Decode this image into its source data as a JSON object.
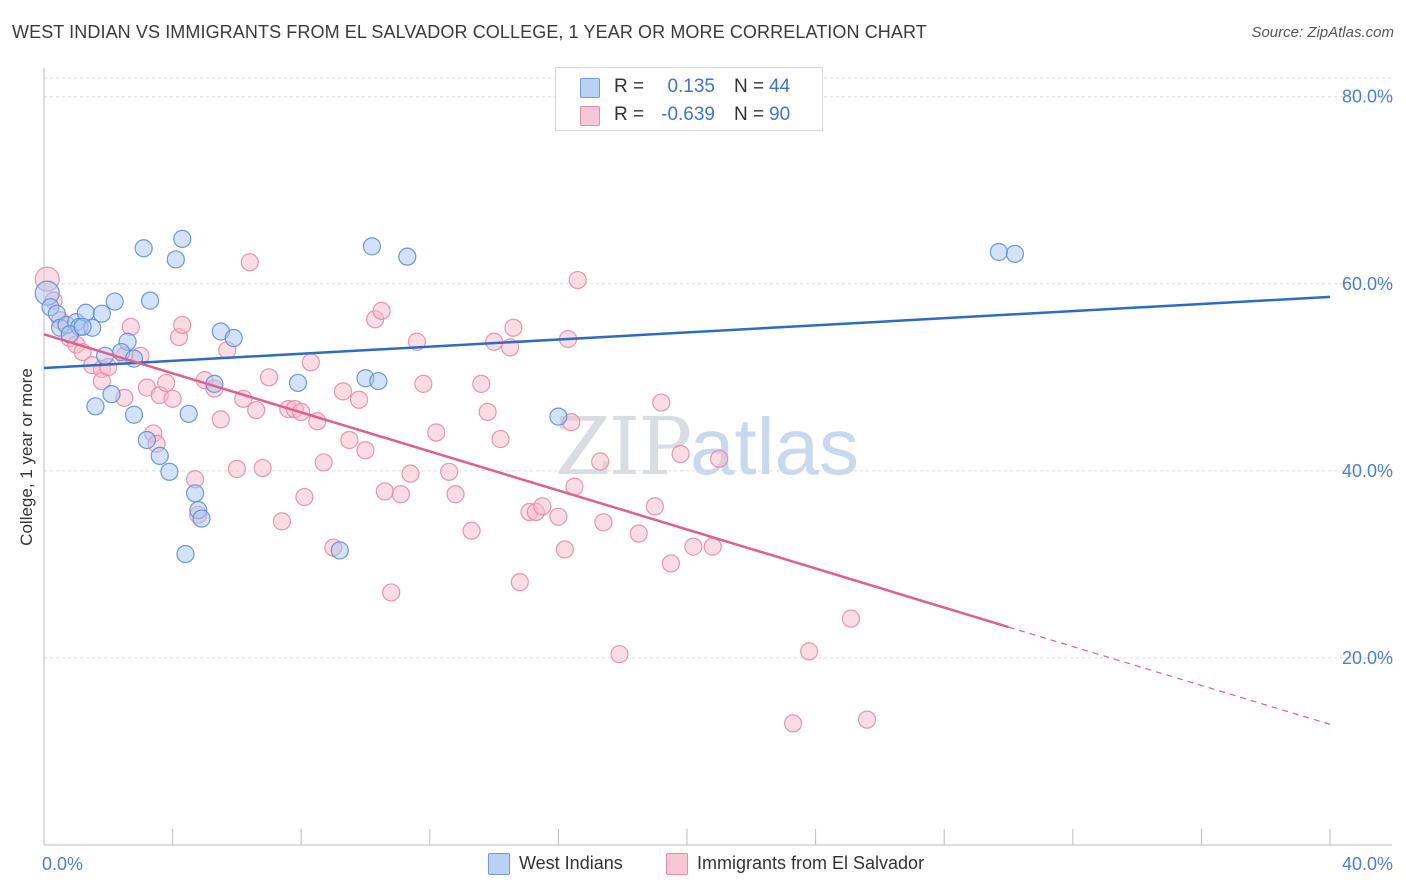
{
  "header": {
    "title": "WEST INDIAN VS IMMIGRANTS FROM EL SALVADOR COLLEGE, 1 YEAR OR MORE CORRELATION CHART",
    "source": "Source: ZipAtlas.com"
  },
  "watermark": {
    "zip": "ZIP",
    "atlas": "atlas"
  },
  "legend_top": {
    "rows": [
      {
        "r_label": "R =",
        "r_value": "0.135",
        "n_label": "N =",
        "n_value": "44"
      },
      {
        "r_label": "R =",
        "r_value": "-0.639",
        "n_label": "N =",
        "n_value": "90"
      }
    ]
  },
  "legend_bottom": {
    "items": [
      {
        "label": "West Indians"
      },
      {
        "label": "Immigrants from El Salvador"
      }
    ]
  },
  "chart_data": {
    "type": "scatter",
    "title": "WEST INDIAN VS IMMIGRANTS FROM EL SALVADOR COLLEGE, 1 YEAR OR MORE CORRELATION CHART",
    "xlabel": "",
    "ylabel": "College, 1 year or more",
    "xlim": [
      0,
      40
    ],
    "ylim": [
      0,
      82
    ],
    "x_ticks": [
      0,
      4,
      8,
      12,
      16,
      20,
      24,
      28,
      32,
      36,
      40
    ],
    "x_tick_labels": [
      {
        "value": 0,
        "label": "0.0%"
      },
      {
        "value": 40,
        "label": "40.0%"
      }
    ],
    "y_ticks": [
      {
        "value": 20,
        "label": "20.0%"
      },
      {
        "value": 40,
        "label": "40.0%"
      },
      {
        "value": 60,
        "label": "60.0%"
      },
      {
        "value": 80,
        "label": "80.0%"
      }
    ],
    "grid": true,
    "legend_position": "bottom",
    "colors": {
      "blue_fill": "#a9c6f0",
      "blue_stroke": "#5d8fd6",
      "blue_line": "#2d6cc4",
      "pink_fill": "#f6b9cb",
      "pink_stroke": "#e88aa5",
      "pink_line": "#e0608a",
      "grid": "#dcdcdc",
      "tick_label": "#4a7fd4"
    },
    "series": [
      {
        "name": "West Indians",
        "r": 0.135,
        "n": 44,
        "color": "blue",
        "trend": {
          "x": [
            0,
            40
          ],
          "y": [
            51.0,
            58.6
          ]
        },
        "points": [
          [
            0.1,
            59.0
          ],
          [
            0.2,
            57.5
          ],
          [
            0.4,
            56.8
          ],
          [
            0.5,
            55.3
          ],
          [
            0.7,
            55.6
          ],
          [
            1.0,
            55.9
          ],
          [
            1.1,
            55.4
          ],
          [
            1.3,
            56.9
          ],
          [
            1.5,
            55.3
          ],
          [
            1.8,
            56.8
          ],
          [
            2.2,
            58.1
          ],
          [
            2.6,
            53.8
          ],
          [
            2.4,
            52.7
          ],
          [
            2.8,
            52.0
          ],
          [
            3.3,
            58.2
          ],
          [
            3.1,
            63.8
          ],
          [
            4.1,
            62.6
          ],
          [
            4.3,
            64.8
          ],
          [
            1.6,
            46.9
          ],
          [
            2.1,
            48.2
          ],
          [
            2.8,
            46.0
          ],
          [
            3.2,
            43.3
          ],
          [
            3.6,
            41.6
          ],
          [
            3.9,
            39.9
          ],
          [
            4.5,
            46.1
          ],
          [
            4.7,
            37.6
          ],
          [
            4.8,
            35.8
          ],
          [
            4.9,
            34.9
          ],
          [
            4.4,
            31.1
          ],
          [
            5.5,
            54.9
          ],
          [
            5.9,
            54.2
          ],
          [
            5.3,
            49.3
          ],
          [
            7.9,
            49.4
          ],
          [
            9.2,
            31.5
          ],
          [
            10.0,
            49.9
          ],
          [
            10.2,
            64.0
          ],
          [
            10.4,
            49.6
          ],
          [
            11.3,
            62.9
          ],
          [
            16.0,
            45.8
          ],
          [
            29.7,
            63.4
          ],
          [
            30.2,
            63.2
          ],
          [
            0.8,
            54.6
          ],
          [
            1.2,
            55.4
          ],
          [
            1.9,
            52.3
          ]
        ]
      },
      {
        "name": "Immigrants from El Salvador",
        "r": -0.639,
        "n": 90,
        "color": "pink",
        "trend": {
          "x": [
            0,
            30
          ],
          "y": [
            54.6,
            23.3
          ]
        },
        "trend_extension": {
          "x": [
            30,
            40
          ],
          "y": [
            23.3,
            12.9
          ]
        },
        "points": [
          [
            0.1,
            60.5
          ],
          [
            0.3,
            58.2
          ],
          [
            0.5,
            56.1
          ],
          [
            0.8,
            54.2
          ],
          [
            1.0,
            53.5
          ],
          [
            1.2,
            52.7
          ],
          [
            1.5,
            51.3
          ],
          [
            1.8,
            50.9
          ],
          [
            1.8,
            49.6
          ],
          [
            2.0,
            51.1
          ],
          [
            2.5,
            52.3
          ],
          [
            2.5,
            47.8
          ],
          [
            2.7,
            55.4
          ],
          [
            3.0,
            52.3
          ],
          [
            3.2,
            48.9
          ],
          [
            3.4,
            44.0
          ],
          [
            3.5,
            42.9
          ],
          [
            3.6,
            48.1
          ],
          [
            3.8,
            49.4
          ],
          [
            4.0,
            47.7
          ],
          [
            4.2,
            54.3
          ],
          [
            4.3,
            55.6
          ],
          [
            4.7,
            39.1
          ],
          [
            4.8,
            35.3
          ],
          [
            5.0,
            49.7
          ],
          [
            5.3,
            48.8
          ],
          [
            5.5,
            45.5
          ],
          [
            5.7,
            52.9
          ],
          [
            6.0,
            40.2
          ],
          [
            6.2,
            47.7
          ],
          [
            6.4,
            62.3
          ],
          [
            6.6,
            46.5
          ],
          [
            6.8,
            40.3
          ],
          [
            7.0,
            50.0
          ],
          [
            7.4,
            34.6
          ],
          [
            7.6,
            46.6
          ],
          [
            7.8,
            46.6
          ],
          [
            8.0,
            46.3
          ],
          [
            8.1,
            37.2
          ],
          [
            8.3,
            51.6
          ],
          [
            8.5,
            45.3
          ],
          [
            8.7,
            40.9
          ],
          [
            9.0,
            31.8
          ],
          [
            9.3,
            48.5
          ],
          [
            9.5,
            43.3
          ],
          [
            9.8,
            47.6
          ],
          [
            10.0,
            42.2
          ],
          [
            10.3,
            56.2
          ],
          [
            10.5,
            57.1
          ],
          [
            10.6,
            37.8
          ],
          [
            10.8,
            27.0
          ],
          [
            11.1,
            37.5
          ],
          [
            11.4,
            39.7
          ],
          [
            11.6,
            53.8
          ],
          [
            11.8,
            49.3
          ],
          [
            12.2,
            44.1
          ],
          [
            12.6,
            39.9
          ],
          [
            12.8,
            37.5
          ],
          [
            13.3,
            33.6
          ],
          [
            13.6,
            49.3
          ],
          [
            13.8,
            46.3
          ],
          [
            14.0,
            53.8
          ],
          [
            14.2,
            43.4
          ],
          [
            14.5,
            53.2
          ],
          [
            14.6,
            55.3
          ],
          [
            14.8,
            28.1
          ],
          [
            15.1,
            35.6
          ],
          [
            15.3,
            35.6
          ],
          [
            15.5,
            36.2
          ],
          [
            16.0,
            35.1
          ],
          [
            16.2,
            31.6
          ],
          [
            16.4,
            45.2
          ],
          [
            16.5,
            38.3
          ],
          [
            16.3,
            54.1
          ],
          [
            16.6,
            60.4
          ],
          [
            17.3,
            41.0
          ],
          [
            17.4,
            34.5
          ],
          [
            17.9,
            20.4
          ],
          [
            18.5,
            33.3
          ],
          [
            19.0,
            36.2
          ],
          [
            19.2,
            47.3
          ],
          [
            19.5,
            30.1
          ],
          [
            19.8,
            41.8
          ],
          [
            20.2,
            31.9
          ],
          [
            20.8,
            31.9
          ],
          [
            21.0,
            41.3
          ],
          [
            23.3,
            13.0
          ],
          [
            23.8,
            20.7
          ],
          [
            25.1,
            24.2
          ],
          [
            25.6,
            13.4
          ]
        ]
      }
    ]
  }
}
